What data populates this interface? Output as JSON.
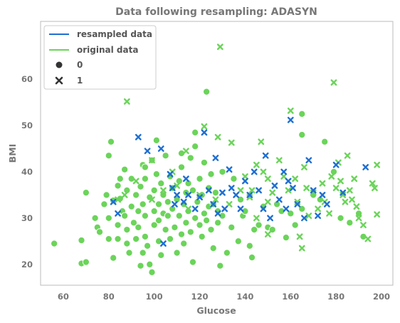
{
  "chart_data": {
    "type": "scatter",
    "title": "Data following resampling: ADASYN",
    "xlabel": "Glucose",
    "ylabel": "BMI",
    "xlim": [
      50,
      205
    ],
    "ylim": [
      15.5,
      72.5
    ],
    "xticks": [
      60,
      80,
      100,
      120,
      140,
      160,
      180,
      200
    ],
    "yticks": [
      20,
      30,
      40,
      50,
      60
    ],
    "grid": false,
    "legend_position": "top-left",
    "legend": {
      "hue": [
        {
          "label": "resampled data",
          "color": "#1f6fd1"
        },
        {
          "label": "original data",
          "color": "#6bd45a"
        }
      ],
      "style": [
        {
          "label": "0",
          "marker": "circle"
        },
        {
          "label": "1",
          "marker": "x"
        }
      ]
    },
    "series": [
      {
        "name": "original data",
        "class": "0",
        "marker": "circle",
        "color": "#6bd45a",
        "points": [
          [
            56,
            24.5
          ],
          [
            68,
            25.2
          ],
          [
            68,
            20.2
          ],
          [
            70,
            20.5
          ],
          [
            70,
            35.5
          ],
          [
            74,
            30
          ],
          [
            75,
            28
          ],
          [
            76,
            27
          ],
          [
            78,
            33
          ],
          [
            79,
            35
          ],
          [
            80,
            25.5
          ],
          [
            80,
            43.5
          ],
          [
            80,
            30
          ],
          [
            81,
            46.5
          ],
          [
            82,
            33.8
          ],
          [
            82,
            21.4
          ],
          [
            84,
            28.5
          ],
          [
            84,
            37
          ],
          [
            85,
            38.5
          ],
          [
            85,
            34.2
          ],
          [
            86,
            31.5
          ],
          [
            87,
            40.5
          ],
          [
            87,
            30.5
          ],
          [
            88,
            27.5
          ],
          [
            88,
            24.5
          ],
          [
            88,
            36
          ],
          [
            89,
            22.5
          ],
          [
            90,
            32.5
          ],
          [
            90,
            38.5
          ],
          [
            91,
            29
          ],
          [
            92,
            25.5
          ],
          [
            92,
            35
          ],
          [
            93,
            31.5
          ],
          [
            93,
            28
          ],
          [
            94,
            36.8
          ],
          [
            94,
            19.7
          ],
          [
            95,
            41.5
          ],
          [
            95,
            33
          ],
          [
            95,
            22.5
          ],
          [
            96,
            26
          ],
          [
            96,
            38.5
          ],
          [
            96,
            30.5
          ],
          [
            97,
            24
          ],
          [
            98,
            20
          ],
          [
            98,
            34.5
          ],
          [
            99,
            18.3
          ],
          [
            99,
            42.5
          ],
          [
            100,
            28.5
          ],
          [
            100,
            36
          ],
          [
            100,
            31.5
          ],
          [
            101,
            39.5
          ],
          [
            101,
            46.8
          ],
          [
            102,
            25
          ],
          [
            102,
            33
          ],
          [
            102,
            29.5
          ],
          [
            103,
            22
          ],
          [
            103,
            37.5
          ],
          [
            104,
            31
          ],
          [
            104,
            35
          ],
          [
            105,
            27.5
          ],
          [
            105,
            43.5
          ],
          [
            106,
            30.5
          ],
          [
            106,
            33.5
          ],
          [
            107,
            25.5
          ],
          [
            107,
            39
          ],
          [
            108,
            32
          ],
          [
            108,
            36.5
          ],
          [
            109,
            28
          ],
          [
            110,
            34
          ],
          [
            110,
            22.5
          ],
          [
            111,
            38
          ],
          [
            111,
            30.5
          ],
          [
            112,
            26.5
          ],
          [
            112,
            41
          ],
          [
            113,
            33
          ],
          [
            113,
            24.5
          ],
          [
            114,
            35.5
          ],
          [
            114,
            29
          ],
          [
            115,
            37.5
          ],
          [
            115,
            31.5
          ],
          [
            116,
            27
          ],
          [
            116,
            43
          ],
          [
            117,
            36
          ],
          [
            117,
            20.5
          ],
          [
            118,
            30
          ],
          [
            118,
            45.5
          ],
          [
            119,
            33.5
          ],
          [
            120,
            28.5
          ],
          [
            120,
            38.5
          ],
          [
            121,
            26
          ],
          [
            121,
            35
          ],
          [
            122,
            31
          ],
          [
            122,
            42
          ],
          [
            123,
            57.3
          ],
          [
            123,
            29.5
          ],
          [
            124,
            36.5
          ],
          [
            124,
            32.5
          ],
          [
            125,
            27.5
          ],
          [
            125,
            39.5
          ],
          [
            126,
            33
          ],
          [
            126,
            23.5
          ],
          [
            127,
            35.5
          ],
          [
            128,
            31.5
          ],
          [
            128,
            29
          ],
          [
            129,
            19.7
          ],
          [
            130,
            30.5
          ],
          [
            130,
            40
          ],
          [
            132,
            22.5
          ],
          [
            134,
            28
          ],
          [
            135,
            38.5
          ],
          [
            137,
            25
          ],
          [
            138,
            34
          ],
          [
            139,
            30.5
          ],
          [
            140,
            31.5
          ],
          [
            142,
            24
          ],
          [
            143,
            21.5
          ],
          [
            144,
            27.5
          ],
          [
            146,
            28.5
          ],
          [
            148,
            32.5
          ],
          [
            150,
            28
          ],
          [
            152,
            27.5
          ],
          [
            154,
            33
          ],
          [
            156,
            31.5
          ],
          [
            158,
            25.8
          ],
          [
            160,
            31
          ],
          [
            162,
            28.5
          ],
          [
            165,
            32
          ],
          [
            165,
            52.5
          ],
          [
            165,
            48
          ],
          [
            170,
            35
          ],
          [
            173,
            34
          ],
          [
            175,
            46.5
          ],
          [
            179,
            40
          ],
          [
            182,
            30
          ],
          [
            186,
            29
          ],
          [
            190,
            31
          ],
          [
            192,
            26
          ],
          [
            118,
            48.5
          ],
          [
            84,
            25.5
          ],
          [
            96,
            41
          ],
          [
            112,
            44
          ]
        ]
      },
      {
        "name": "original data",
        "class": "1",
        "marker": "x",
        "color": "#6bd45a",
        "points": [
          [
            88,
            55.2
          ],
          [
            99,
            42.5
          ],
          [
            108,
            40
          ],
          [
            114,
            44.5
          ],
          [
            122,
            49.8
          ],
          [
            128,
            47.5
          ],
          [
            129,
            67
          ],
          [
            134,
            46.3
          ],
          [
            140,
            39
          ],
          [
            143,
            36
          ],
          [
            145,
            41.5
          ],
          [
            147,
            46.5
          ],
          [
            150,
            38.5
          ],
          [
            152,
            35.5
          ],
          [
            155,
            42.5
          ],
          [
            157,
            39
          ],
          [
            159,
            36
          ],
          [
            160,
            53.2
          ],
          [
            162,
            38.5
          ],
          [
            163,
            33.5
          ],
          [
            164,
            26
          ],
          [
            165,
            23.5
          ],
          [
            166,
            41
          ],
          [
            167,
            36.5
          ],
          [
            168,
            30.5
          ],
          [
            170,
            35.5
          ],
          [
            172,
            32
          ],
          [
            174,
            37.5
          ],
          [
            175,
            33.5
          ],
          [
            177,
            31
          ],
          [
            178,
            39
          ],
          [
            179,
            59.3
          ],
          [
            180,
            36.5
          ],
          [
            181,
            42
          ],
          [
            182,
            38
          ],
          [
            183,
            35
          ],
          [
            184,
            33.5
          ],
          [
            185,
            43.5
          ],
          [
            186,
            36
          ],
          [
            187,
            34
          ],
          [
            188,
            38.5
          ],
          [
            189,
            32.5
          ],
          [
            190,
            30
          ],
          [
            192,
            28.5
          ],
          [
            194,
            25.5
          ],
          [
            196,
            37.5
          ],
          [
            197,
            36.5
          ],
          [
            198,
            41.5
          ],
          [
            198,
            30.8
          ],
          [
            150,
            26.5
          ],
          [
            145,
            30
          ],
          [
            142,
            34.5
          ],
          [
            138,
            36
          ],
          [
            133,
            33
          ],
          [
            127,
            34
          ],
          [
            120,
            35
          ],
          [
            115,
            32
          ],
          [
            110,
            37
          ],
          [
            104,
            36
          ],
          [
            99,
            34
          ],
          [
            92,
            38
          ],
          [
            87,
            35
          ],
          [
            84,
            34
          ],
          [
            150,
            33.5
          ],
          [
            148,
            40
          ]
        ]
      },
      {
        "name": "resampled data",
        "class": "1",
        "marker": "x",
        "color": "#1f6fd1",
        "points": [
          [
            93,
            47.5
          ],
          [
            97,
            44.5
          ],
          [
            103,
            45
          ],
          [
            107,
            39.5
          ],
          [
            108,
            36.5
          ],
          [
            110,
            35
          ],
          [
            113,
            33.5
          ],
          [
            114,
            38.5
          ],
          [
            115,
            35
          ],
          [
            118,
            32
          ],
          [
            120,
            34.5
          ],
          [
            122,
            48.5
          ],
          [
            124,
            36
          ],
          [
            126,
            33
          ],
          [
            127,
            43
          ],
          [
            128,
            31
          ],
          [
            130,
            35.5
          ],
          [
            131,
            32
          ],
          [
            133,
            40.5
          ],
          [
            134,
            36.5
          ],
          [
            136,
            35
          ],
          [
            138,
            32
          ],
          [
            140,
            38
          ],
          [
            142,
            35
          ],
          [
            144,
            40
          ],
          [
            146,
            36
          ],
          [
            148,
            32
          ],
          [
            149,
            43.5
          ],
          [
            151,
            30
          ],
          [
            153,
            37
          ],
          [
            155,
            34
          ],
          [
            157,
            40
          ],
          [
            158,
            32
          ],
          [
            159,
            38
          ],
          [
            160,
            51.2
          ],
          [
            161,
            36.5
          ],
          [
            163,
            33
          ],
          [
            166,
            30
          ],
          [
            168,
            42.5
          ],
          [
            170,
            36
          ],
          [
            172,
            30.5
          ],
          [
            174,
            35
          ],
          [
            176,
            33
          ],
          [
            180,
            41.5
          ],
          [
            183,
            35.5
          ],
          [
            193,
            41
          ],
          [
            104,
            24.5
          ],
          [
            109,
            33
          ],
          [
            82,
            33.5
          ],
          [
            84,
            31
          ]
        ]
      }
    ]
  }
}
